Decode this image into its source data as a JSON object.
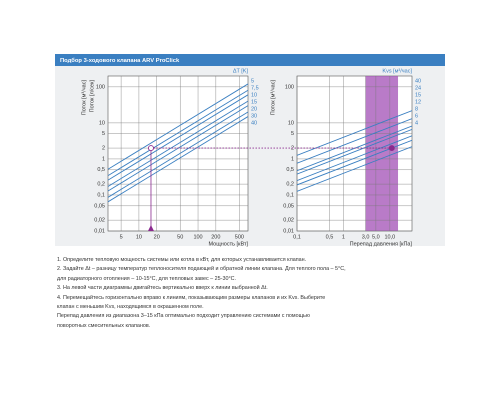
{
  "header": {
    "title": "Подбор 3-ходового клапана ARV ProClick"
  },
  "chart_data": [
    {
      "type": "line",
      "log_x": true,
      "log_y": true,
      "grid": true,
      "xlabel": "Мощность [кВт]",
      "ylabel": "Поток [м³/час]",
      "y2label": "Поток [л/сек]",
      "legend_title": "ΔT [K]",
      "x": [
        3,
        700
      ],
      "series": [
        {
          "name": "5",
          "color": "#3a7fc1",
          "values": [
            0.516,
            120.4
          ]
        },
        {
          "name": "7,5",
          "color": "#3a7fc1",
          "values": [
            0.344,
            80.3
          ]
        },
        {
          "name": "10",
          "color": "#3a7fc1",
          "values": [
            0.258,
            60.2
          ]
        },
        {
          "name": "15",
          "color": "#3a7fc1",
          "values": [
            0.172,
            40.1
          ]
        },
        {
          "name": "20",
          "color": "#3a7fc1",
          "values": [
            0.129,
            30.1
          ]
        },
        {
          "name": "30",
          "color": "#3a7fc1",
          "values": [
            0.086,
            20.1
          ]
        },
        {
          "name": "40",
          "color": "#3a7fc1",
          "values": [
            0.0645,
            15.0
          ]
        }
      ],
      "xlim": [
        3,
        700
      ],
      "xticks": [
        5,
        10,
        20,
        50,
        100,
        200,
        500
      ],
      "ylim": [
        0.01,
        200
      ],
      "yticks": [
        100,
        10,
        5,
        2,
        1,
        {
          "value": 0.5,
          "label": "0,5"
        },
        {
          "value": 0.2,
          "label": "0,2"
        },
        {
          "value": 0.1,
          "label": "0,1"
        },
        {
          "value": 0.05,
          "label": "0,05"
        },
        {
          "value": 0.02,
          "label": "0,02"
        },
        {
          "value": 0.01,
          "label": "0,01"
        }
      ],
      "marker": {
        "x": 16,
        "y": 2,
        "color": "#8b2a8f"
      }
    },
    {
      "type": "line",
      "log_x": true,
      "log_y": true,
      "grid": true,
      "xlabel": "Перепад давления [кПа]",
      "ylabel": "Поток [м³/час]",
      "legend_title": "Kvs [м³/час]",
      "x": [
        0.1,
        30
      ],
      "series": [
        {
          "name": "40",
          "color": "#3a7fc1",
          "values": [
            1.26,
            21.9
          ]
        },
        {
          "name": "24",
          "color": "#3a7fc1",
          "values": [
            0.76,
            13.1
          ]
        },
        {
          "name": "15",
          "color": "#3a7fc1",
          "values": [
            0.47,
            8.2
          ]
        },
        {
          "name": "12",
          "color": "#3a7fc1",
          "values": [
            0.38,
            6.6
          ]
        },
        {
          "name": "8",
          "color": "#3a7fc1",
          "values": [
            0.25,
            4.4
          ]
        },
        {
          "name": "6",
          "color": "#3a7fc1",
          "values": [
            0.19,
            3.3
          ]
        },
        {
          "name": "4",
          "color": "#3a7fc1",
          "values": [
            0.126,
            2.19
          ]
        }
      ],
      "xlim": [
        0.1,
        30
      ],
      "xticks": [
        {
          "value": 0.1,
          "label": "0,1"
        },
        {
          "value": 0.5,
          "label": "0,5"
        },
        1,
        {
          "value": 3,
          "label": "3,0"
        },
        {
          "value": 5,
          "label": "5,0"
        },
        {
          "value": 10,
          "label": "10,0"
        }
      ],
      "ylim": [
        0.01,
        200
      ],
      "yticks": [
        100,
        10,
        5,
        2,
        1,
        {
          "value": 0.5,
          "label": "0,5"
        },
        {
          "value": 0.2,
          "label": "0,2"
        },
        {
          "value": 0.1,
          "label": "0,1"
        },
        {
          "value": 0.05,
          "label": "0,05"
        },
        {
          "value": 0.02,
          "label": "0,02"
        },
        {
          "value": 0.01,
          "label": "0,01"
        }
      ],
      "band": {
        "x": [
          3,
          15
        ],
        "color": "#a24fb5"
      },
      "marker": {
        "x": 11,
        "y": 2,
        "color": "#8b2a8f"
      }
    }
  ],
  "instructions": [
    "1. Определите тепловую мощность системы или котла в кВт, для которых устанавливается клапан.",
    "2. Задайте Δt – разницу температур теплоносителя подающей и обратной линии клапана. Для теплого пола – 5°C,",
    "для радиаторного отопления – 10-15°C, для тепловых завес – 25-30°C.",
    "3. На левой части диаграммы двигайтесь вертикально вверх к линии выбранной Δt.",
    "4. Перемещайтесь горизонтально вправо к линиям, показывающим размеры клапанов и их Kvs. Выберите",
    "клапан с меньшим Kvs, находящимся в окрашенном поле.",
    "Перепад давления из диапазона 3–15 кПа оптимально подходит управлению системами с помощью",
    "поворотных смесительных клапанов."
  ]
}
